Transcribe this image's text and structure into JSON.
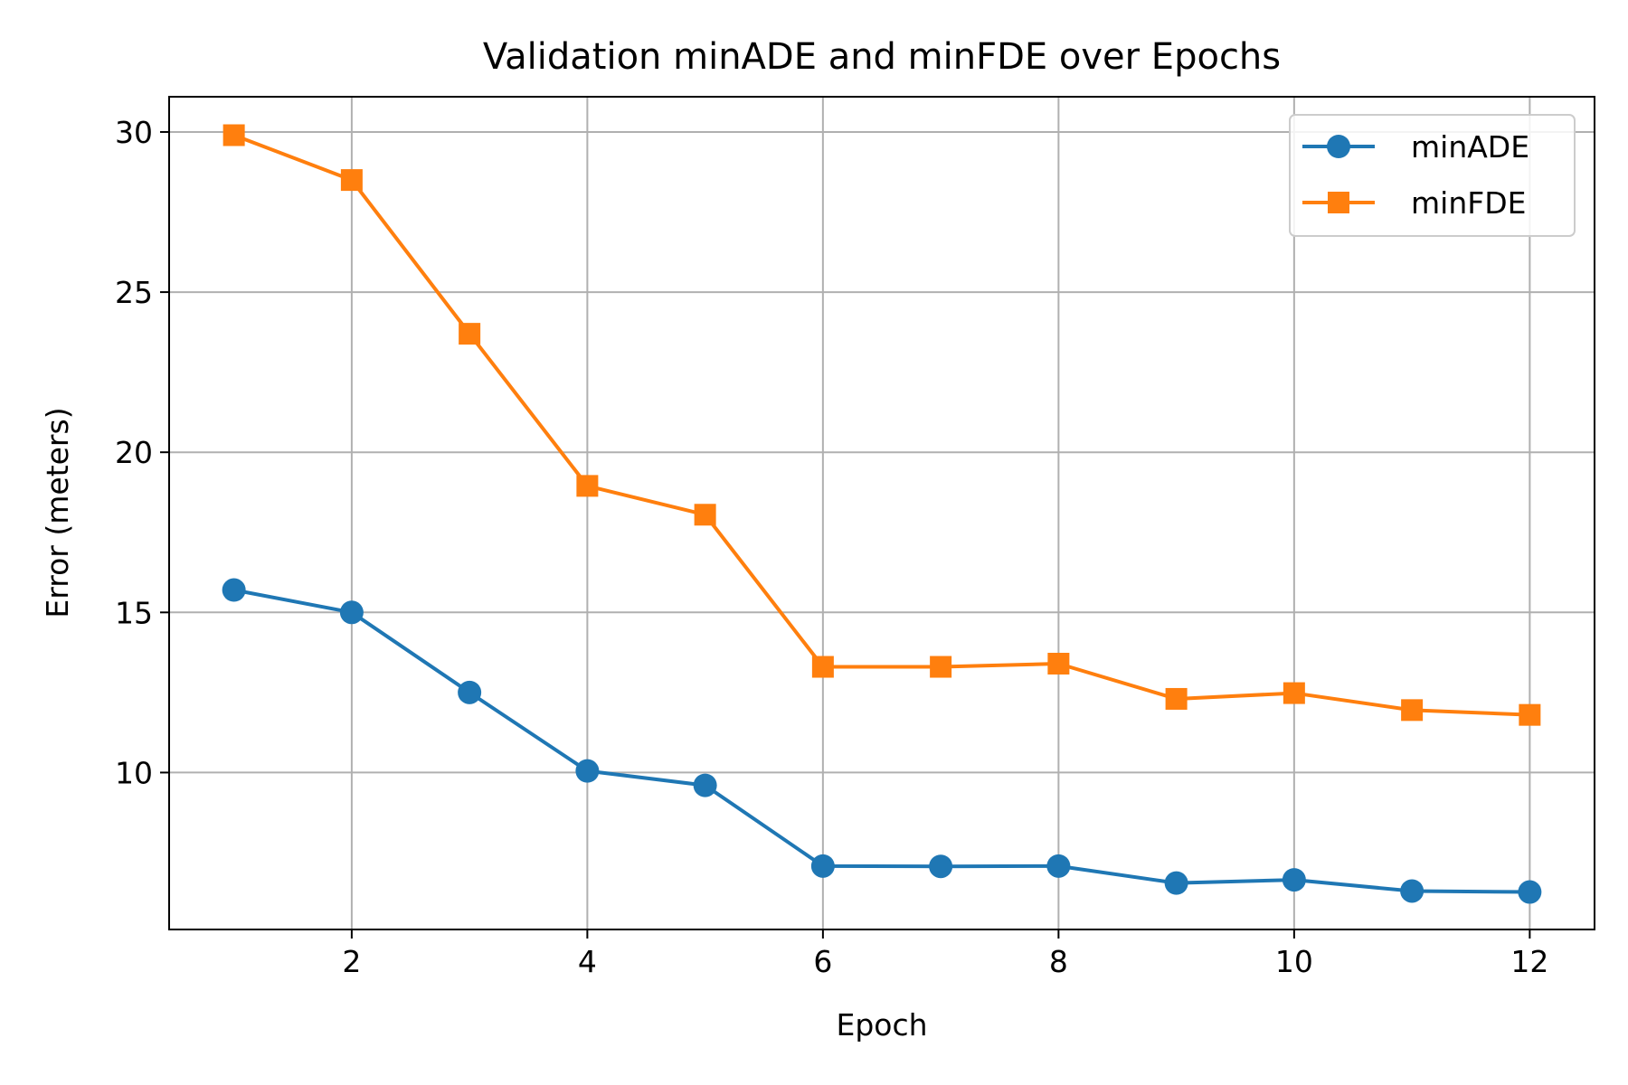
{
  "chart_data": {
    "type": "line",
    "title": "Validation minADE and minFDE over Epochs",
    "xlabel": "Epoch",
    "ylabel": "Error (meters)",
    "x": [
      1,
      2,
      3,
      4,
      5,
      6,
      7,
      8,
      9,
      10,
      11,
      12
    ],
    "xlim": [
      0.45,
      12.55
    ],
    "ylim": [
      5.1,
      31.1
    ],
    "xticks": [
      2,
      4,
      6,
      8,
      10,
      12
    ],
    "yticks": [
      10,
      15,
      20,
      25,
      30
    ],
    "grid": true,
    "legend_position": "top-right",
    "series": [
      {
        "name": "minADE",
        "color": "#1f77b4",
        "marker": "circle",
        "values": [
          15.7,
          15.0,
          12.5,
          10.05,
          9.6,
          7.08,
          7.07,
          7.08,
          6.55,
          6.65,
          6.3,
          6.27
        ]
      },
      {
        "name": "minFDE",
        "color": "#ff7f0e",
        "marker": "square",
        "values": [
          29.9,
          28.5,
          23.7,
          18.95,
          18.05,
          13.3,
          13.3,
          13.4,
          12.3,
          12.48,
          11.95,
          11.8
        ]
      }
    ]
  }
}
